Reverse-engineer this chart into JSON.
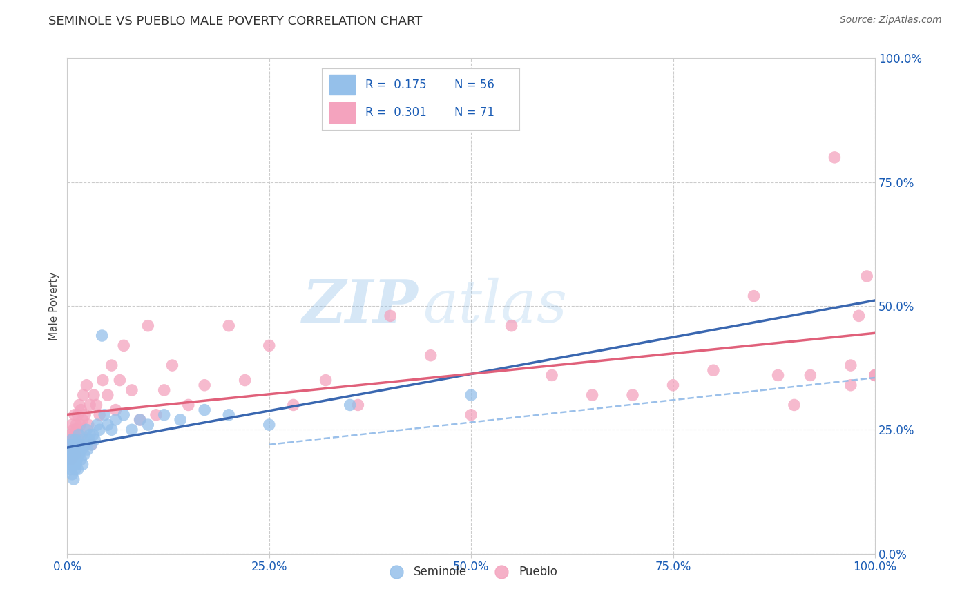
{
  "title": "SEMINOLE VS PUEBLO MALE POVERTY CORRELATION CHART",
  "source_text": "Source: ZipAtlas.com",
  "ylabel": "Male Poverty",
  "watermark_zip": "ZIP",
  "watermark_atlas": "atlas",
  "xlim": [
    0.0,
    1.0
  ],
  "ylim": [
    0.0,
    1.0
  ],
  "tick_vals": [
    0.0,
    0.25,
    0.5,
    0.75,
    1.0
  ],
  "tick_labels": [
    "0.0%",
    "25.0%",
    "50.0%",
    "75.0%",
    "100.0%"
  ],
  "seminole_color": "#95C0EA",
  "pueblo_color": "#F4A3BE",
  "seminole_line_color": "#3A67B0",
  "pueblo_line_color": "#E0607A",
  "dashed_line_color": "#90BAE8",
  "seminole_R": 0.175,
  "seminole_N": 56,
  "pueblo_R": 0.301,
  "pueblo_N": 71,
  "stat_color": "#1A5CB5",
  "background_color": "#FFFFFF",
  "grid_color": "#CCCCCC",
  "title_color": "#333333",
  "source_color": "#666666",
  "seminole_x": [
    0.002,
    0.003,
    0.004,
    0.004,
    0.005,
    0.005,
    0.006,
    0.006,
    0.007,
    0.007,
    0.008,
    0.008,
    0.009,
    0.009,
    0.01,
    0.01,
    0.011,
    0.011,
    0.012,
    0.012,
    0.013,
    0.013,
    0.014,
    0.015,
    0.016,
    0.017,
    0.018,
    0.019,
    0.02,
    0.021,
    0.022,
    0.024,
    0.025,
    0.026,
    0.028,
    0.03,
    0.032,
    0.034,
    0.037,
    0.04,
    0.043,
    0.046,
    0.05,
    0.055,
    0.06,
    0.07,
    0.08,
    0.09,
    0.1,
    0.12,
    0.14,
    0.17,
    0.2,
    0.25,
    0.35,
    0.5
  ],
  "seminole_y": [
    0.18,
    0.2,
    0.17,
    0.22,
    0.19,
    0.21,
    0.16,
    0.23,
    0.18,
    0.2,
    0.15,
    0.22,
    0.19,
    0.21,
    0.17,
    0.23,
    0.2,
    0.18,
    0.22,
    0.19,
    0.21,
    0.17,
    0.24,
    0.2,
    0.22,
    0.19,
    0.21,
    0.18,
    0.23,
    0.2,
    0.22,
    0.25,
    0.21,
    0.23,
    0.24,
    0.22,
    0.24,
    0.23,
    0.26,
    0.25,
    0.44,
    0.28,
    0.26,
    0.25,
    0.27,
    0.28,
    0.25,
    0.27,
    0.26,
    0.28,
    0.27,
    0.29,
    0.28,
    0.26,
    0.3,
    0.32
  ],
  "pueblo_x": [
    0.002,
    0.003,
    0.004,
    0.005,
    0.006,
    0.006,
    0.007,
    0.008,
    0.008,
    0.009,
    0.009,
    0.01,
    0.011,
    0.011,
    0.012,
    0.013,
    0.014,
    0.015,
    0.016,
    0.017,
    0.018,
    0.019,
    0.02,
    0.022,
    0.024,
    0.026,
    0.028,
    0.03,
    0.033,
    0.036,
    0.04,
    0.044,
    0.05,
    0.055,
    0.06,
    0.065,
    0.07,
    0.08,
    0.09,
    0.1,
    0.11,
    0.12,
    0.13,
    0.15,
    0.17,
    0.2,
    0.22,
    0.25,
    0.28,
    0.32,
    0.36,
    0.4,
    0.45,
    0.5,
    0.55,
    0.6,
    0.65,
    0.7,
    0.75,
    0.8,
    0.85,
    0.88,
    0.9,
    0.92,
    0.95,
    0.97,
    0.97,
    0.98,
    0.99,
    1.0,
    1.0
  ],
  "pueblo_y": [
    0.22,
    0.2,
    0.24,
    0.19,
    0.23,
    0.26,
    0.21,
    0.25,
    0.22,
    0.24,
    0.28,
    0.2,
    0.26,
    0.22,
    0.25,
    0.28,
    0.23,
    0.3,
    0.26,
    0.29,
    0.24,
    0.27,
    0.32,
    0.28,
    0.34,
    0.26,
    0.3,
    0.22,
    0.32,
    0.3,
    0.28,
    0.35,
    0.32,
    0.38,
    0.29,
    0.35,
    0.42,
    0.33,
    0.27,
    0.46,
    0.28,
    0.33,
    0.38,
    0.3,
    0.34,
    0.46,
    0.35,
    0.42,
    0.3,
    0.35,
    0.3,
    0.48,
    0.4,
    0.28,
    0.46,
    0.36,
    0.32,
    0.32,
    0.34,
    0.37,
    0.52,
    0.36,
    0.3,
    0.36,
    0.8,
    0.34,
    0.38,
    0.48,
    0.56,
    0.36,
    0.36
  ]
}
